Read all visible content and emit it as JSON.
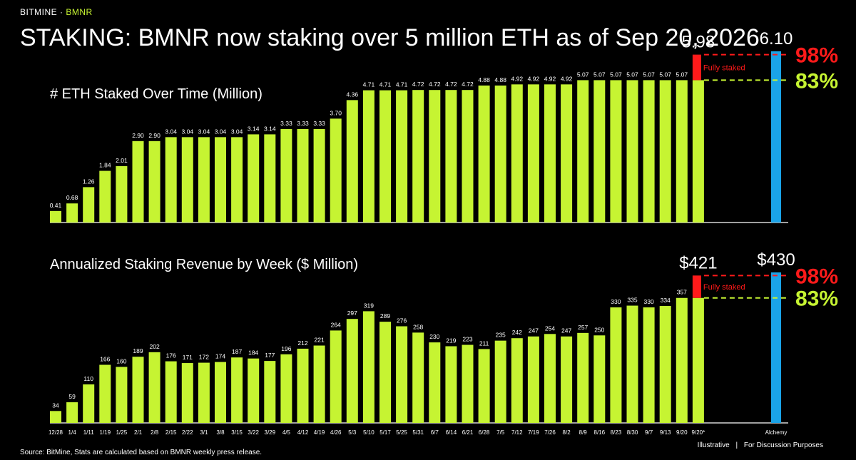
{
  "header": {
    "brand": "BITMINE",
    "brand_sep": "·",
    "ticker": "BMNR",
    "title": "STAKING: BMNR now staking over 5 million ETH as of Sep 20, 2026"
  },
  "footer": {
    "source": "Source: BitMine, Stats are calculated based on BMNR weekly press release.",
    "illustrative": "Illustrative",
    "divider": "|",
    "discussion": "For Discussion Purposes"
  },
  "colors": {
    "bar": "#c6f432",
    "alchemy_bar": "#1aa3e8",
    "fully_staked": "#ff1a1a",
    "pct_98": "#ff1a1a",
    "pct_83": "#c6f432",
    "background": "#000000"
  },
  "chart_data": [
    {
      "type": "bar",
      "title": "# ETH Staked Over Time (Million)",
      "categories": [
        "12/28",
        "1/4",
        "1/11",
        "1/19",
        "1/25",
        "2/1",
        "2/8",
        "2/15",
        "2/22",
        "3/1",
        "3/8",
        "3/15",
        "3/22",
        "3/29",
        "4/5",
        "4/12",
        "4/19",
        "4/26",
        "5/3",
        "5/10",
        "5/17",
        "5/25",
        "5/31",
        "6/7",
        "6/14",
        "6/21",
        "6/28",
        "7/5",
        "7/12",
        "7/19",
        "7/26",
        "8/2",
        "8/9",
        "8/16",
        "8/23",
        "8/30",
        "9/7",
        "9/13",
        "9/20",
        "9/20*"
      ],
      "values": [
        0.41,
        0.68,
        1.26,
        1.84,
        2.01,
        2.9,
        2.9,
        3.04,
        3.04,
        3.04,
        3.04,
        3.04,
        3.14,
        3.14,
        3.33,
        3.33,
        3.33,
        3.7,
        4.36,
        4.71,
        4.71,
        4.71,
        4.72,
        4.72,
        4.72,
        4.72,
        4.88,
        4.88,
        4.92,
        4.92,
        4.92,
        4.92,
        5.07,
        5.07,
        5.07,
        5.07,
        5.07,
        5.07,
        5.07,
        5.07
      ],
      "value_labels": [
        "0.41",
        "0.68",
        "1.26",
        "1.84",
        "2.01",
        "2.90",
        "2.90",
        "3.04",
        "3.04",
        "3.04",
        "3.04",
        "3.04",
        "3.14",
        "3.14",
        "3.33",
        "3.33",
        "3.33",
        "3.70",
        "4.36",
        "4.71",
        "4.71",
        "4.71",
        "4.72",
        "4.72",
        "4.72",
        "4.72",
        "4.88",
        "4.88",
        "4.92",
        "4.92",
        "4.92",
        "4.92",
        "5.07",
        "5.07",
        "5.07",
        "5.07",
        "5.07",
        "5.07",
        "5.07",
        ""
      ],
      "fully_staked_value": 5.98,
      "fully_staked_label": "5.98",
      "fully_staked_text": "Fully staked",
      "alchemy_value": 6.1,
      "alchemy_label": "6.10",
      "pct_high": "98%",
      "pct_low": "83%",
      "ylim": [
        0,
        6.3
      ]
    },
    {
      "type": "bar",
      "title": "Annualized Staking Revenue by Week ($ Million)",
      "categories": [
        "12/28",
        "1/4",
        "1/11",
        "1/19",
        "1/25",
        "2/1",
        "2/8",
        "2/15",
        "2/22",
        "3/1",
        "3/8",
        "3/15",
        "3/22",
        "3/29",
        "4/5",
        "4/12",
        "4/19",
        "4/26",
        "5/3",
        "5/10",
        "5/17",
        "5/25",
        "5/31",
        "6/7",
        "6/14",
        "6/21",
        "6/28",
        "7/5",
        "7/12",
        "7/19",
        "7/26",
        "8/2",
        "8/9",
        "8/16",
        "8/23",
        "8/30",
        "9/7",
        "9/13",
        "9/20",
        "9/20*"
      ],
      "values": [
        34,
        59,
        110,
        166,
        160,
        189,
        202,
        176,
        171,
        172,
        174,
        187,
        184,
        177,
        196,
        212,
        221,
        264,
        297,
        319,
        289,
        276,
        258,
        230,
        219,
        223,
        211,
        235,
        242,
        247,
        254,
        247,
        257,
        250,
        330,
        335,
        330,
        334,
        357,
        357
      ],
      "value_labels": [
        "34",
        "59",
        "110",
        "166",
        "160",
        "189",
        "202",
        "176",
        "171",
        "172",
        "174",
        "187",
        "184",
        "177",
        "196",
        "212",
        "221",
        "264",
        "297",
        "319",
        "289",
        "276",
        "258",
        "230",
        "219",
        "223",
        "211",
        "235",
        "242",
        "247",
        "254",
        "247",
        "257",
        "250",
        "330",
        "335",
        "330",
        "334",
        "357",
        ""
      ],
      "fully_staked_value": 421,
      "fully_staked_label": "$421",
      "fully_staked_text": "Fully staked",
      "alchemy_value": 430,
      "alchemy_label": "$430",
      "alchemy_category": "Alchemy",
      "pct_high": "98%",
      "pct_low": "83%",
      "ylim": [
        0,
        440
      ]
    }
  ]
}
